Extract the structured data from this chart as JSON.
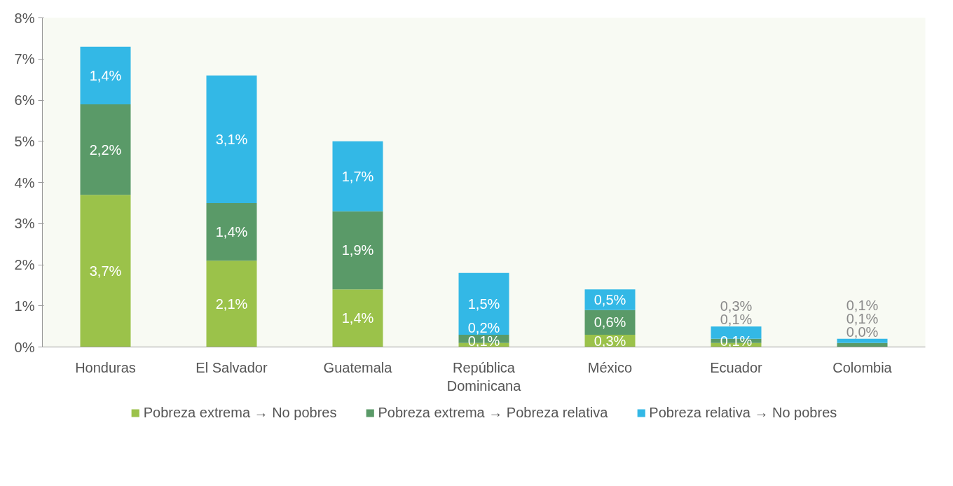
{
  "chart_data": {
    "type": "bar",
    "stacked": true,
    "categories": [
      "Honduras",
      "El Salvador",
      "Guatemala",
      "República Dominicana",
      "México",
      "Ecuador",
      "Colombia"
    ],
    "series": [
      {
        "name": "Pobreza extrema → No pobres",
        "color": "#9bc24a",
        "values": [
          3.7,
          2.1,
          1.4,
          0.1,
          0.3,
          0.1,
          0.0
        ],
        "value_labels": [
          "3,7%",
          "2,1%",
          "1,4%",
          "0,1%",
          "0,3%",
          "0,1%",
          "0,0%"
        ]
      },
      {
        "name": "Pobreza extrema → Pobreza relativa",
        "color": "#5a9a68",
        "values": [
          2.2,
          1.4,
          1.9,
          0.2,
          0.6,
          0.1,
          0.1
        ],
        "value_labels": [
          "2,2%",
          "1,4%",
          "1,9%",
          "0,2%",
          "0,6%",
          "0,1%",
          "0,1%"
        ]
      },
      {
        "name": "Pobreza relativa → No pobres",
        "color": "#33b8e6",
        "values": [
          1.4,
          3.1,
          1.7,
          1.5,
          0.5,
          0.3,
          0.1
        ],
        "value_labels": [
          "1,4%",
          "3,1%",
          "1,7%",
          "1,5%",
          "0,5%",
          "0,3%",
          "0,1%"
        ]
      }
    ],
    "ylim": [
      0,
      8
    ],
    "yticks": [
      {
        "value": 0,
        "label": "0%"
      },
      {
        "value": 1,
        "label": "1%"
      },
      {
        "value": 2,
        "label": "2%"
      },
      {
        "value": 3,
        "label": "3%"
      },
      {
        "value": 4,
        "label": "4%"
      },
      {
        "value": 5,
        "label": "5%"
      },
      {
        "value": 6,
        "label": "6%"
      },
      {
        "value": 7,
        "label": "7%"
      },
      {
        "value": 8,
        "label": "8%"
      }
    ],
    "grid": false,
    "legend": "bottom"
  }
}
